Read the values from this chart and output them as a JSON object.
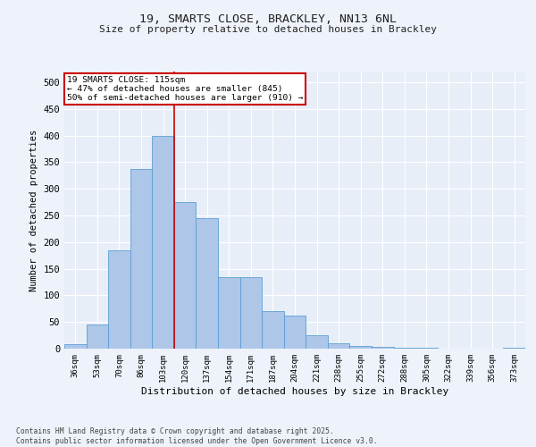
{
  "title1": "19, SMARTS CLOSE, BRACKLEY, NN13 6NL",
  "title2": "Size of property relative to detached houses in Brackley",
  "xlabel": "Distribution of detached houses by size in Brackley",
  "ylabel": "Number of detached properties",
  "categories": [
    "36sqm",
    "53sqm",
    "70sqm",
    "86sqm",
    "103sqm",
    "120sqm",
    "137sqm",
    "154sqm",
    "171sqm",
    "187sqm",
    "204sqm",
    "221sqm",
    "238sqm",
    "255sqm",
    "272sqm",
    "288sqm",
    "305sqm",
    "322sqm",
    "339sqm",
    "356sqm",
    "373sqm"
  ],
  "values": [
    8,
    46,
    185,
    338,
    400,
    275,
    245,
    135,
    135,
    70,
    62,
    25,
    10,
    5,
    4,
    2,
    1,
    0,
    0,
    0,
    2
  ],
  "bar_color": "#aec6e8",
  "bar_edge_color": "#5a9fd4",
  "vline_x": 4.5,
  "vline_color": "#cc0000",
  "annotation_text": "19 SMARTS CLOSE: 115sqm\n← 47% of detached houses are smaller (845)\n50% of semi-detached houses are larger (910) →",
  "annotation_box_color": "#ffffff",
  "annotation_box_edge": "#cc0000",
  "bg_color": "#e8eef8",
  "grid_color": "#ffffff",
  "fig_bg_color": "#eef2fa",
  "footer": "Contains HM Land Registry data © Crown copyright and database right 2025.\nContains public sector information licensed under the Open Government Licence v3.0.",
  "ylim": [
    0,
    520
  ],
  "yticks": [
    0,
    50,
    100,
    150,
    200,
    250,
    300,
    350,
    400,
    450,
    500
  ]
}
